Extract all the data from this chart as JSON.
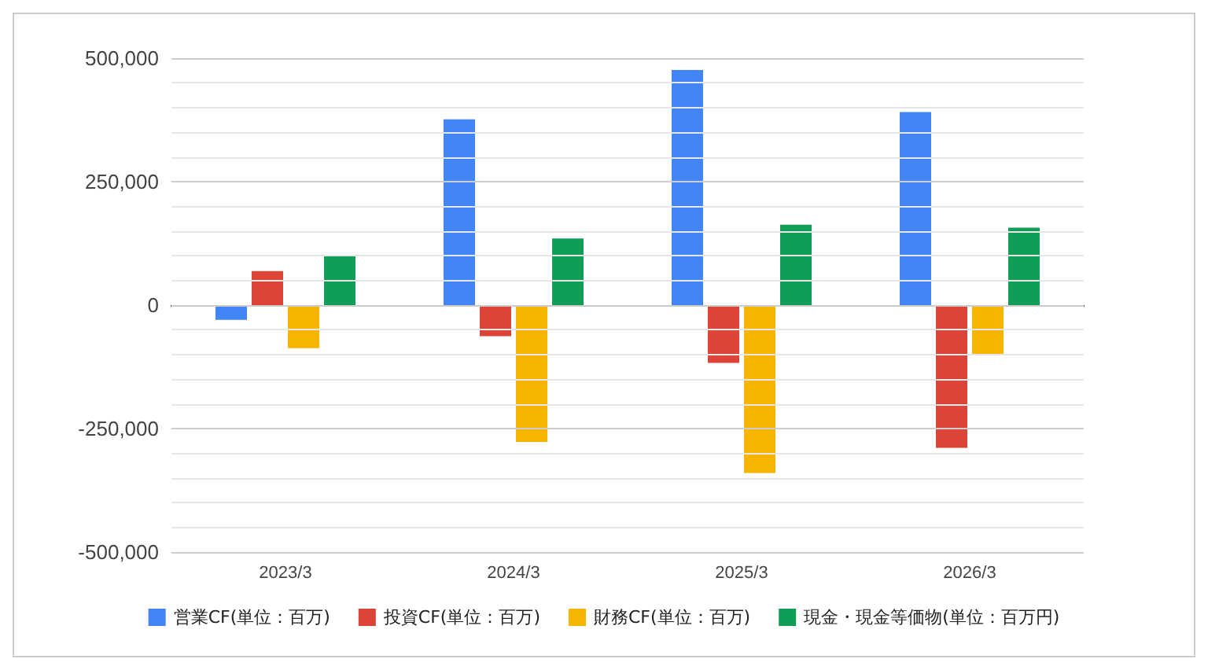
{
  "chart_data": {
    "type": "bar",
    "categories": [
      "2023/3",
      "2024/3",
      "2025/3",
      "2026/3"
    ],
    "series": [
      {
        "name": "営業CF(単位：百万)",
        "color": "#4285f4",
        "values": [
          -30000,
          376000,
          476000,
          391000
        ]
      },
      {
        "name": "投資CF(単位：百万)",
        "color": "#db4437",
        "values": [
          69000,
          -63000,
          -117000,
          -289000
        ]
      },
      {
        "name": "財務CF(単位：百万)",
        "color": "#f4b400",
        "values": [
          -87000,
          -277000,
          -340000,
          -102000
        ]
      },
      {
        "name": "現金・現金等価物(単位：百万円)",
        "color": "#0f9d58",
        "values": [
          102000,
          135000,
          163000,
          157000
        ]
      }
    ],
    "ylim": [
      -500000,
      500000
    ],
    "yticks": [
      {
        "value": -500000,
        "label": "-500,000"
      },
      {
        "value": -250000,
        "label": "-250,000"
      },
      0,
      {
        "value": 250000,
        "label": "250,000"
      },
      {
        "value": 500000,
        "label": "500,000"
      }
    ],
    "grid": true,
    "legend": "bottom"
  }
}
